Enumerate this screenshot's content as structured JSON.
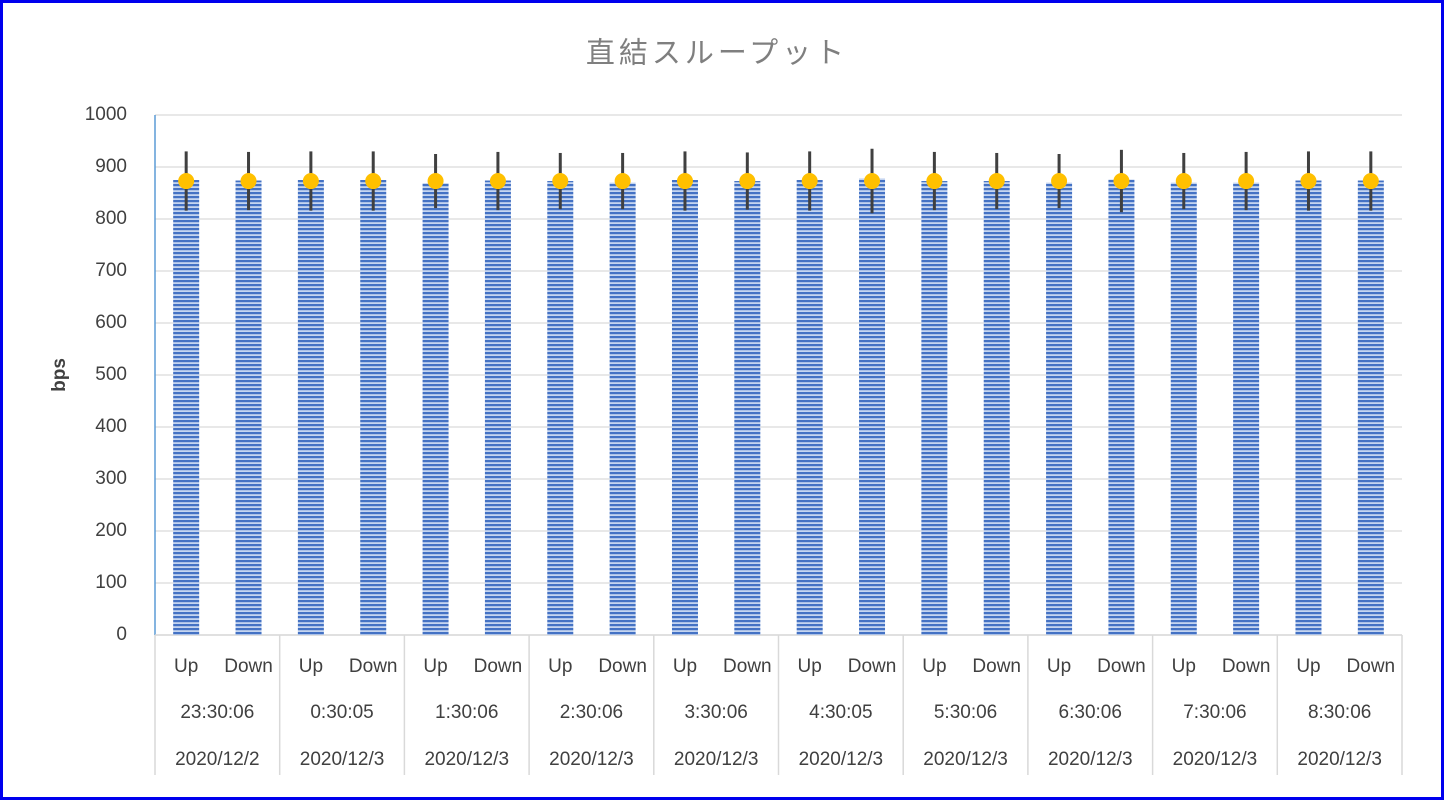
{
  "chart_data": {
    "type": "bar",
    "title": "直結スループット",
    "y_label": "bps",
    "categories": [
      "Up",
      "Down",
      "Up",
      "Down",
      "Up",
      "Down",
      "Up",
      "Down",
      "Up",
      "Down",
      "Up",
      "Down",
      "Up",
      "Down",
      "Up",
      "Down",
      "Up",
      "Down",
      "Up",
      "Down"
    ],
    "groups": [
      {
        "time": "23:30:06",
        "date": "2020/12/2"
      },
      {
        "time": "0:30:05",
        "date": "2020/12/3"
      },
      {
        "time": "1:30:06",
        "date": "2020/12/3"
      },
      {
        "time": "2:30:06",
        "date": "2020/12/3"
      },
      {
        "time": "3:30:06",
        "date": "2020/12/3"
      },
      {
        "time": "4:30:05",
        "date": "2020/12/3"
      },
      {
        "time": "5:30:06",
        "date": "2020/12/3"
      },
      {
        "time": "6:30:06",
        "date": "2020/12/3"
      },
      {
        "time": "7:30:06",
        "date": "2020/12/3"
      },
      {
        "time": "8:30:06",
        "date": "2020/12/3"
      }
    ],
    "series": [
      {
        "color": "#4472c4",
        "values": [
          875,
          874,
          875,
          875,
          869,
          874,
          873,
          870,
          875,
          873,
          875,
          878,
          873,
          873,
          870,
          876,
          870,
          870,
          874,
          874
        ]
      },
      {
        "color": "#ffc000",
        "values": [
          873,
          873,
          873,
          873,
          873,
          873,
          873,
          873,
          873,
          873,
          873,
          873,
          873,
          873,
          873,
          873,
          873,
          873,
          873,
          873
        ],
        "errors": [
          57,
          56,
          57,
          57,
          52,
          56,
          54,
          54,
          57,
          55,
          57,
          62,
          56,
          54,
          52,
          60,
          54,
          56,
          57,
          57
        ],
        "error_color": "#404040"
      }
    ],
    "ylim": [
      0,
      1000
    ],
    "yticks": [
      0,
      100,
      200,
      300,
      400,
      500,
      600,
      700,
      800,
      900,
      1000
    ],
    "grid": true
  }
}
